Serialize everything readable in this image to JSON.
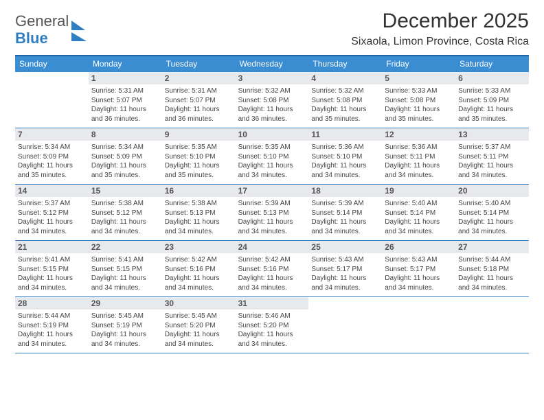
{
  "brand": {
    "line1": "General",
    "line2": "Blue"
  },
  "title": "December 2025",
  "location": "Sixaola, Limon Province, Costa Rica",
  "colors": {
    "accent": "#3a8dd0",
    "rule": "#2f7fc2",
    "daybg": "#e7e9ec"
  },
  "dow": [
    "Sunday",
    "Monday",
    "Tuesday",
    "Wednesday",
    "Thursday",
    "Friday",
    "Saturday"
  ],
  "start_offset": 1,
  "days": [
    {
      "n": 1,
      "sr": "5:31 AM",
      "ss": "5:07 PM",
      "dl": "11 hours and 36 minutes."
    },
    {
      "n": 2,
      "sr": "5:31 AM",
      "ss": "5:07 PM",
      "dl": "11 hours and 36 minutes."
    },
    {
      "n": 3,
      "sr": "5:32 AM",
      "ss": "5:08 PM",
      "dl": "11 hours and 36 minutes."
    },
    {
      "n": 4,
      "sr": "5:32 AM",
      "ss": "5:08 PM",
      "dl": "11 hours and 35 minutes."
    },
    {
      "n": 5,
      "sr": "5:33 AM",
      "ss": "5:08 PM",
      "dl": "11 hours and 35 minutes."
    },
    {
      "n": 6,
      "sr": "5:33 AM",
      "ss": "5:09 PM",
      "dl": "11 hours and 35 minutes."
    },
    {
      "n": 7,
      "sr": "5:34 AM",
      "ss": "5:09 PM",
      "dl": "11 hours and 35 minutes."
    },
    {
      "n": 8,
      "sr": "5:34 AM",
      "ss": "5:09 PM",
      "dl": "11 hours and 35 minutes."
    },
    {
      "n": 9,
      "sr": "5:35 AM",
      "ss": "5:10 PM",
      "dl": "11 hours and 35 minutes."
    },
    {
      "n": 10,
      "sr": "5:35 AM",
      "ss": "5:10 PM",
      "dl": "11 hours and 34 minutes."
    },
    {
      "n": 11,
      "sr": "5:36 AM",
      "ss": "5:10 PM",
      "dl": "11 hours and 34 minutes."
    },
    {
      "n": 12,
      "sr": "5:36 AM",
      "ss": "5:11 PM",
      "dl": "11 hours and 34 minutes."
    },
    {
      "n": 13,
      "sr": "5:37 AM",
      "ss": "5:11 PM",
      "dl": "11 hours and 34 minutes."
    },
    {
      "n": 14,
      "sr": "5:37 AM",
      "ss": "5:12 PM",
      "dl": "11 hours and 34 minutes."
    },
    {
      "n": 15,
      "sr": "5:38 AM",
      "ss": "5:12 PM",
      "dl": "11 hours and 34 minutes."
    },
    {
      "n": 16,
      "sr": "5:38 AM",
      "ss": "5:13 PM",
      "dl": "11 hours and 34 minutes."
    },
    {
      "n": 17,
      "sr": "5:39 AM",
      "ss": "5:13 PM",
      "dl": "11 hours and 34 minutes."
    },
    {
      "n": 18,
      "sr": "5:39 AM",
      "ss": "5:14 PM",
      "dl": "11 hours and 34 minutes."
    },
    {
      "n": 19,
      "sr": "5:40 AM",
      "ss": "5:14 PM",
      "dl": "11 hours and 34 minutes."
    },
    {
      "n": 20,
      "sr": "5:40 AM",
      "ss": "5:14 PM",
      "dl": "11 hours and 34 minutes."
    },
    {
      "n": 21,
      "sr": "5:41 AM",
      "ss": "5:15 PM",
      "dl": "11 hours and 34 minutes."
    },
    {
      "n": 22,
      "sr": "5:41 AM",
      "ss": "5:15 PM",
      "dl": "11 hours and 34 minutes."
    },
    {
      "n": 23,
      "sr": "5:42 AM",
      "ss": "5:16 PM",
      "dl": "11 hours and 34 minutes."
    },
    {
      "n": 24,
      "sr": "5:42 AM",
      "ss": "5:16 PM",
      "dl": "11 hours and 34 minutes."
    },
    {
      "n": 25,
      "sr": "5:43 AM",
      "ss": "5:17 PM",
      "dl": "11 hours and 34 minutes."
    },
    {
      "n": 26,
      "sr": "5:43 AM",
      "ss": "5:17 PM",
      "dl": "11 hours and 34 minutes."
    },
    {
      "n": 27,
      "sr": "5:44 AM",
      "ss": "5:18 PM",
      "dl": "11 hours and 34 minutes."
    },
    {
      "n": 28,
      "sr": "5:44 AM",
      "ss": "5:19 PM",
      "dl": "11 hours and 34 minutes."
    },
    {
      "n": 29,
      "sr": "5:45 AM",
      "ss": "5:19 PM",
      "dl": "11 hours and 34 minutes."
    },
    {
      "n": 30,
      "sr": "5:45 AM",
      "ss": "5:20 PM",
      "dl": "11 hours and 34 minutes."
    },
    {
      "n": 31,
      "sr": "5:46 AM",
      "ss": "5:20 PM",
      "dl": "11 hours and 34 minutes."
    }
  ],
  "labels": {
    "sunrise": "Sunrise:",
    "sunset": "Sunset:",
    "daylight": "Daylight:"
  }
}
